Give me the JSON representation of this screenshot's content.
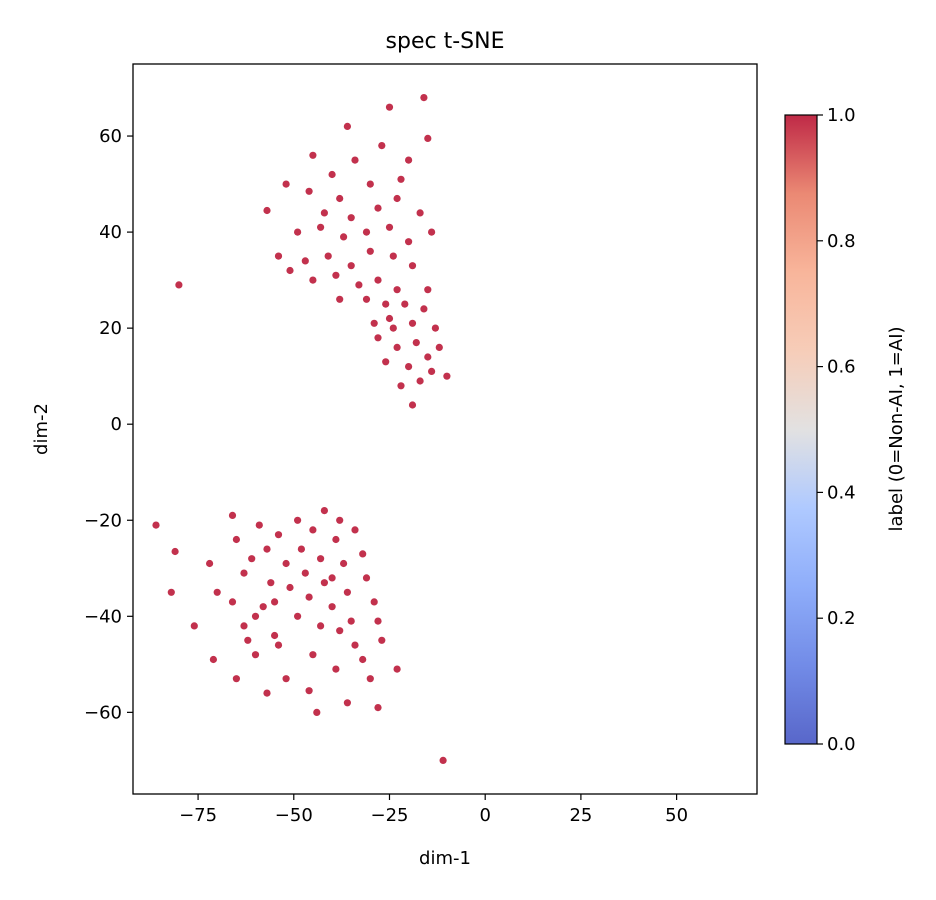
{
  "chart_data": {
    "type": "scatter",
    "title": "spec t-SNE",
    "xlabel": "dim-1",
    "ylabel": "dim-2",
    "xlim": [
      -92,
      71
    ],
    "ylim": [
      -77,
      75
    ],
    "xticks": [
      -75,
      -50,
      -25,
      0,
      25,
      50
    ],
    "xtick_labels": [
      "−75",
      "−50",
      "−25",
      "0",
      "25",
      "50"
    ],
    "yticks": [
      -60,
      -40,
      -20,
      0,
      20,
      40,
      60
    ],
    "ytick_labels": [
      "−60",
      "−40",
      "−20",
      "0",
      "20",
      "40",
      "60"
    ],
    "grid": false,
    "colormap": "coolwarm",
    "colorbar": {
      "label": "label (0=Non-AI, 1=AI)",
      "min": 0.0,
      "max": 1.0,
      "ticks": [
        0.0,
        0.2,
        0.4,
        0.6,
        0.8,
        1.0
      ],
      "tick_labels": [
        "0.0",
        "0.2",
        "0.4",
        "0.6",
        "0.8",
        "1.0"
      ]
    },
    "colors": {
      "label_0": "#3b4cc0",
      "label_1": "#b40426"
    },
    "series": [
      {
        "label_value": 1,
        "points": [
          [
            -80,
            29
          ],
          [
            -45,
            56
          ],
          [
            -36,
            62
          ],
          [
            -25,
            66
          ],
          [
            -16,
            68
          ],
          [
            -15,
            59.5
          ],
          [
            -57,
            44.5
          ],
          [
            -52,
            50
          ],
          [
            -46,
            48.5
          ],
          [
            -40,
            52
          ],
          [
            -34,
            55
          ],
          [
            -27,
            58
          ],
          [
            -20,
            55
          ],
          [
            -22,
            51
          ],
          [
            -30,
            50
          ],
          [
            -38,
            47
          ],
          [
            -42,
            44
          ],
          [
            -35,
            43
          ],
          [
            -28,
            45
          ],
          [
            -23,
            47
          ],
          [
            -17,
            44
          ],
          [
            -14,
            40
          ],
          [
            -49,
            40
          ],
          [
            -43,
            41
          ],
          [
            -37,
            39
          ],
          [
            -31,
            40
          ],
          [
            -25,
            41
          ],
          [
            -20,
            38
          ],
          [
            -54,
            35
          ],
          [
            -47,
            34
          ],
          [
            -41,
            35
          ],
          [
            -35,
            33
          ],
          [
            -30,
            36
          ],
          [
            -24,
            35
          ],
          [
            -19,
            33
          ],
          [
            -51,
            32
          ],
          [
            -45,
            30
          ],
          [
            -39,
            31
          ],
          [
            -33,
            29
          ],
          [
            -28,
            30
          ],
          [
            -23,
            28
          ],
          [
            -21,
            25
          ],
          [
            -26,
            25
          ],
          [
            -31,
            26
          ],
          [
            -29,
            21
          ],
          [
            -24,
            20
          ],
          [
            -19,
            21
          ],
          [
            -16,
            24
          ],
          [
            -13,
            20
          ],
          [
            -18,
            17
          ],
          [
            -23,
            16
          ],
          [
            -28,
            18
          ],
          [
            -26,
            13
          ],
          [
            -20,
            12
          ],
          [
            -15,
            14
          ],
          [
            -12,
            16
          ],
          [
            -22,
            8
          ],
          [
            -17,
            9
          ],
          [
            -14,
            11
          ],
          [
            -19,
            4
          ],
          [
            -10,
            10
          ],
          [
            -25,
            22
          ],
          [
            -15,
            28
          ],
          [
            -38,
            26
          ],
          [
            -86,
            -21
          ],
          [
            -81,
            -26.5
          ],
          [
            -82,
            -35
          ],
          [
            -76,
            -42
          ],
          [
            -72,
            -29
          ],
          [
            -70,
            -35
          ],
          [
            -66,
            -19
          ],
          [
            -65,
            -24
          ],
          [
            -63,
            -31
          ],
          [
            -66,
            -37
          ],
          [
            -61,
            -28
          ],
          [
            -60,
            -40
          ],
          [
            -59,
            -21
          ],
          [
            -57,
            -26
          ],
          [
            -56,
            -33
          ],
          [
            -55,
            -37
          ],
          [
            -54,
            -23
          ],
          [
            -52,
            -29
          ],
          [
            -51,
            -34
          ],
          [
            -49,
            -20
          ],
          [
            -48,
            -26
          ],
          [
            -47,
            -31
          ],
          [
            -46,
            -36
          ],
          [
            -45,
            -22
          ],
          [
            -43,
            -28
          ],
          [
            -42,
            -33
          ],
          [
            -40,
            -38
          ],
          [
            -39,
            -24
          ],
          [
            -37,
            -29
          ],
          [
            -36,
            -35
          ],
          [
            -42,
            -18
          ],
          [
            -38,
            -20
          ],
          [
            -34,
            -22
          ],
          [
            -32,
            -27
          ],
          [
            -31,
            -32
          ],
          [
            -29,
            -37
          ],
          [
            -28,
            -41
          ],
          [
            -43,
            -42
          ],
          [
            -49,
            -40
          ],
          [
            -55,
            -44
          ],
          [
            -62,
            -45
          ],
          [
            -71,
            -49
          ],
          [
            -65,
            -53
          ],
          [
            -60,
            -48
          ],
          [
            -57,
            -56
          ],
          [
            -52,
            -53
          ],
          [
            -46,
            -55.5
          ],
          [
            -44,
            -60
          ],
          [
            -39,
            -51
          ],
          [
            -34,
            -46
          ],
          [
            -27,
            -45
          ],
          [
            -23,
            -51
          ],
          [
            -30,
            -53
          ],
          [
            -36,
            -58
          ],
          [
            -28,
            -59
          ],
          [
            -32,
            -49
          ],
          [
            -38,
            -43
          ],
          [
            -45,
            -48
          ],
          [
            -54,
            -46
          ],
          [
            -58,
            -38
          ],
          [
            -63,
            -42
          ],
          [
            -40,
            -32
          ],
          [
            -35,
            -41
          ],
          [
            -11,
            -70
          ]
        ]
      }
    ]
  }
}
